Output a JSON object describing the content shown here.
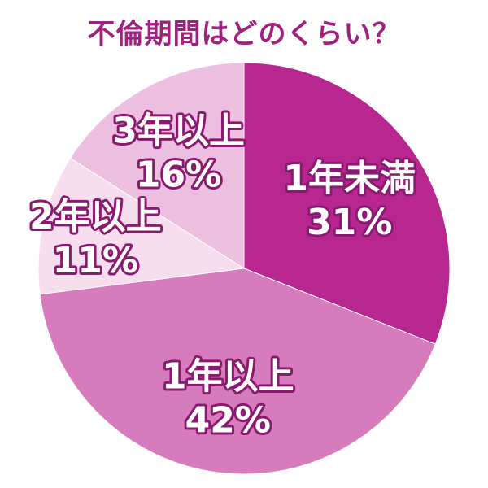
{
  "chart_data": {
    "type": "pie",
    "title": "不倫期間はどのくらい？",
    "slices": [
      {
        "label": "1年未満",
        "value": 31,
        "value_label": "31%",
        "color": "#b8278f"
      },
      {
        "label": "1年以上",
        "value": 42,
        "value_label": "42%",
        "color": "#d67cbc"
      },
      {
        "label": "2年以上",
        "value": 11,
        "value_label": "11%",
        "color": "#f6deef"
      },
      {
        "label": "3年以上",
        "value": 16,
        "value_label": "16%",
        "color": "#ecbedf"
      }
    ],
    "start": "12 o'clock",
    "direction": "clockwise"
  }
}
